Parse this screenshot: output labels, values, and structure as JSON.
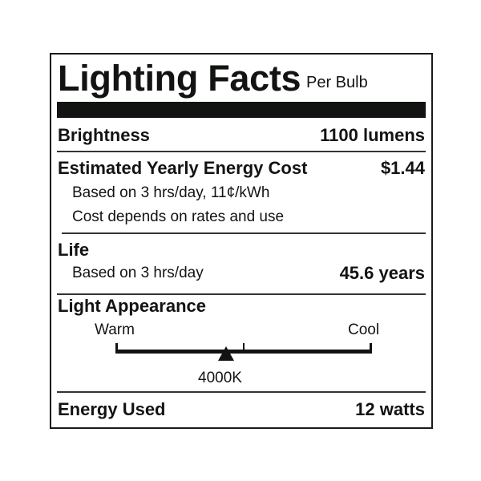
{
  "title": "Lighting Facts",
  "subtitle": "Per Bulb",
  "brightness": {
    "label": "Brightness",
    "value": "1100 lumens"
  },
  "energy_cost": {
    "label": "Estimated Yearly Energy Cost",
    "value": "$1.44",
    "note1": "Based on 3 hrs/day, 11¢/kWh",
    "note2": "Cost depends on rates and use"
  },
  "life": {
    "label": "Life",
    "note": "Based on 3 hrs/day",
    "value": "45.6 years"
  },
  "light_appearance": {
    "label": "Light Appearance",
    "warm_label": "Warm",
    "cool_label": "Cool",
    "marker_label": "4000K",
    "marker_fraction": 0.43
  },
  "energy_used": {
    "label": "Energy Used",
    "value": "12 watts"
  },
  "colors": {
    "ink": "#121412",
    "background": "#ffffff"
  }
}
